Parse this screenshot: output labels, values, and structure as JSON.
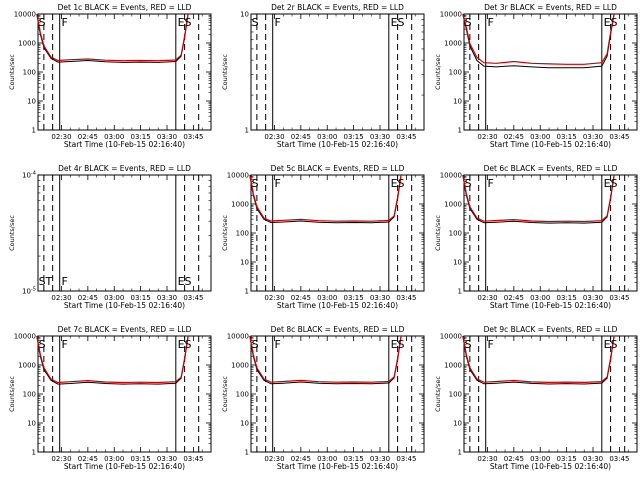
{
  "chart_data": [
    {
      "type": "line",
      "title": "Det 1c BLACK = Events, RED = LLD",
      "xlabel": "Start Time (10-Feb-15 02:16:40)",
      "ylabel": "Counts/sec",
      "yscale": "log",
      "ylim": [
        1,
        10000
      ],
      "yticks": [
        "1",
        "10",
        "100",
        "1000",
        "10000"
      ],
      "xticks": [
        "02:30",
        "02:45",
        "03:00",
        "03:15",
        "03:30",
        "03:45"
      ],
      "marker_labels": [
        {
          "text": "S"
        },
        {
          "text": "F"
        },
        {
          "text": "ES"
        }
      ],
      "series": [
        {
          "color": "#000000",
          "x": [
            "02:16",
            "02:18",
            "02:20",
            "02:24",
            "02:28",
            "02:35",
            "02:45",
            "02:55",
            "03:05",
            "03:15",
            "03:25",
            "03:35",
            "03:38",
            "03:40",
            "03:42"
          ],
          "values": [
            10000,
            2000,
            700,
            300,
            220,
            230,
            250,
            225,
            215,
            220,
            215,
            230,
            350,
            1500,
            10000
          ]
        },
        {
          "color": "#cc0000",
          "x": [
            "02:16",
            "02:18",
            "02:20",
            "02:24",
            "02:28",
            "02:35",
            "02:45",
            "02:55",
            "03:05",
            "03:15",
            "03:25",
            "03:35",
            "03:38",
            "03:40",
            "03:42"
          ],
          "values": [
            10000,
            2300,
            800,
            330,
            250,
            265,
            280,
            255,
            245,
            250,
            245,
            260,
            380,
            1700,
            10000
          ]
        }
      ]
    },
    {
      "type": "line",
      "title": "Det 2r BLACK = Events, RED = LLD",
      "xlabel": "Start Time (10-Feb-15 02:16:40)",
      "ylabel": "Counts/sec",
      "yscale": "log",
      "ylim": [
        1,
        10
      ],
      "yticks": [
        "1",
        "10"
      ],
      "xticks": [
        "02:30",
        "02:45",
        "03:00",
        "03:15",
        "03:30",
        "03:45"
      ],
      "marker_labels": [
        {
          "text": "S"
        },
        {
          "text": "F"
        },
        {
          "text": "ES"
        }
      ],
      "series": []
    },
    {
      "type": "line",
      "title": "Det 3r BLACK = Events, RED = LLD",
      "xlabel": "Start Time (10-Feb-15 02:16:40)",
      "ylabel": "Counts/sec",
      "yscale": "log",
      "ylim": [
        1,
        10000
      ],
      "yticks": [
        "1",
        "10",
        "100",
        "1000",
        "10000"
      ],
      "xticks": [
        "02:30",
        "02:45",
        "03:00",
        "03:15",
        "03:30",
        "03:45"
      ],
      "marker_labels": [
        {
          "text": "S"
        },
        {
          "text": "F"
        },
        {
          "text": "ES"
        }
      ],
      "series": [
        {
          "color": "#000000",
          "x": [
            "02:16",
            "02:18",
            "02:20",
            "02:24",
            "02:28",
            "02:35",
            "02:45",
            "02:55",
            "03:05",
            "03:15",
            "03:25",
            "03:35",
            "03:38",
            "03:40",
            "03:42"
          ],
          "values": [
            10000,
            3000,
            800,
            250,
            160,
            150,
            165,
            150,
            140,
            140,
            140,
            160,
            350,
            2000,
            10000
          ]
        },
        {
          "color": "#cc0000",
          "x": [
            "02:16",
            "02:18",
            "02:20",
            "02:24",
            "02:28",
            "02:35",
            "02:45",
            "02:55",
            "03:05",
            "03:15",
            "03:25",
            "03:35",
            "03:38",
            "03:40",
            "03:42"
          ],
          "values": [
            10000,
            3500,
            950,
            320,
            210,
            200,
            230,
            200,
            190,
            185,
            185,
            210,
            420,
            2300,
            10000
          ]
        }
      ]
    },
    {
      "type": "line",
      "title": "Det 4r BLACK = Events, RED = LLD",
      "xlabel": "Start Time (10-Feb-15 02:16:40)",
      "ylabel": "Counts/sec",
      "yscale": "log",
      "ylim": [
        1e-05,
        0.0001
      ],
      "yticks": [
        "10^-5",
        "10^-4"
      ],
      "xticks": [
        "02:30",
        "02:45",
        "03:00",
        "03:15",
        "03:30",
        "03:45"
      ],
      "marker_labels": [
        {
          "text": "ST"
        },
        {
          "text": "F"
        },
        {
          "text": "ES"
        }
      ],
      "series": []
    },
    {
      "type": "line",
      "title": "Det 5c BLACK = Events, RED = LLD",
      "xlabel": "Start Time (10-Feb-15 02:16:40)",
      "ylabel": "Counts/sec",
      "yscale": "log",
      "ylim": [
        1,
        10000
      ],
      "yticks": [
        "1",
        "10",
        "100",
        "1000",
        "10000"
      ],
      "xticks": [
        "02:30",
        "02:45",
        "03:00",
        "03:15",
        "03:30",
        "03:45"
      ],
      "marker_labels": [
        {
          "text": "S"
        },
        {
          "text": "F"
        },
        {
          "text": "ES"
        }
      ],
      "series": [
        {
          "color": "#000000",
          "x": [
            "02:16",
            "02:18",
            "02:20",
            "02:24",
            "02:28",
            "02:35",
            "02:45",
            "02:55",
            "03:05",
            "03:15",
            "03:25",
            "03:35",
            "03:38",
            "03:40",
            "03:42"
          ],
          "values": [
            10000,
            2000,
            700,
            300,
            230,
            240,
            260,
            235,
            225,
            230,
            225,
            240,
            360,
            1500,
            10000
          ]
        },
        {
          "color": "#cc0000",
          "x": [
            "02:16",
            "02:18",
            "02:20",
            "02:24",
            "02:28",
            "02:35",
            "02:45",
            "02:55",
            "03:05",
            "03:15",
            "03:25",
            "03:35",
            "03:38",
            "03:40",
            "03:42"
          ],
          "values": [
            10000,
            2300,
            800,
            330,
            260,
            275,
            295,
            265,
            255,
            260,
            255,
            270,
            390,
            1700,
            10000
          ]
        }
      ]
    },
    {
      "type": "line",
      "title": "Det 6c BLACK = Events, RED = LLD",
      "xlabel": "Start Time (10-Feb-15 02:16:40)",
      "ylabel": "Counts/sec",
      "yscale": "log",
      "ylim": [
        1,
        10000
      ],
      "yticks": [
        "1",
        "10",
        "100",
        "1000",
        "10000"
      ],
      "xticks": [
        "02:30",
        "02:45",
        "03:00",
        "03:15",
        "03:30",
        "03:45"
      ],
      "marker_labels": [
        {
          "text": "S"
        },
        {
          "text": "F"
        },
        {
          "text": "ES"
        }
      ],
      "series": [
        {
          "color": "#000000",
          "x": [
            "02:16",
            "02:18",
            "02:20",
            "02:24",
            "02:28",
            "02:35",
            "02:45",
            "02:55",
            "03:05",
            "03:15",
            "03:25",
            "03:35",
            "03:38",
            "03:40",
            "03:42"
          ],
          "values": [
            10000,
            2000,
            700,
            300,
            225,
            235,
            255,
            230,
            220,
            225,
            220,
            235,
            355,
            1500,
            10000
          ]
        },
        {
          "color": "#cc0000",
          "x": [
            "02:16",
            "02:18",
            "02:20",
            "02:24",
            "02:28",
            "02:35",
            "02:45",
            "02:55",
            "03:05",
            "03:15",
            "03:25",
            "03:35",
            "03:38",
            "03:40",
            "03:42"
          ],
          "values": [
            10000,
            2300,
            800,
            330,
            255,
            270,
            290,
            260,
            250,
            255,
            250,
            265,
            385,
            1700,
            10000
          ]
        }
      ]
    },
    {
      "type": "line",
      "title": "Det 7c BLACK = Events, RED = LLD",
      "xlabel": "Start Time (10-Feb-15 02:16:40)",
      "ylabel": "Counts/sec",
      "yscale": "log",
      "ylim": [
        1,
        10000
      ],
      "yticks": [
        "1",
        "10",
        "100",
        "1000",
        "10000"
      ],
      "xticks": [
        "02:30",
        "02:45",
        "03:00",
        "03:15",
        "03:30",
        "03:45"
      ],
      "marker_labels": [
        {
          "text": "S"
        },
        {
          "text": "F"
        },
        {
          "text": "ES"
        }
      ],
      "series": [
        {
          "color": "#000000",
          "x": [
            "02:16",
            "02:18",
            "02:20",
            "02:24",
            "02:28",
            "02:35",
            "02:45",
            "02:55",
            "03:05",
            "03:15",
            "03:25",
            "03:35",
            "03:38",
            "03:40",
            "03:42"
          ],
          "values": [
            10000,
            2000,
            700,
            300,
            220,
            230,
            255,
            230,
            220,
            225,
            220,
            235,
            350,
            1500,
            10000
          ]
        },
        {
          "color": "#cc0000",
          "x": [
            "02:16",
            "02:18",
            "02:20",
            "02:24",
            "02:28",
            "02:35",
            "02:45",
            "02:55",
            "03:05",
            "03:15",
            "03:25",
            "03:35",
            "03:38",
            "03:40",
            "03:42"
          ],
          "values": [
            10000,
            2300,
            800,
            330,
            250,
            265,
            290,
            260,
            250,
            255,
            250,
            265,
            380,
            1700,
            10000
          ]
        }
      ]
    },
    {
      "type": "line",
      "title": "Det 8c BLACK = Events, RED = LLD",
      "xlabel": "Start Time (10-Feb-15 02:16:40)",
      "ylabel": "Counts/sec",
      "yscale": "log",
      "ylim": [
        1,
        10000
      ],
      "yticks": [
        "1",
        "10",
        "100",
        "1000",
        "10000"
      ],
      "xticks": [
        "02:30",
        "02:45",
        "03:00",
        "03:15",
        "03:30",
        "03:45"
      ],
      "marker_labels": [
        {
          "text": "S"
        },
        {
          "text": "F"
        },
        {
          "text": "ES"
        }
      ],
      "series": [
        {
          "color": "#000000",
          "x": [
            "02:16",
            "02:18",
            "02:20",
            "02:24",
            "02:28",
            "02:35",
            "02:45",
            "02:55",
            "03:05",
            "03:15",
            "03:25",
            "03:35",
            "03:38",
            "03:40",
            "03:42"
          ],
          "values": [
            10000,
            2000,
            700,
            300,
            225,
            235,
            260,
            235,
            225,
            230,
            225,
            240,
            355,
            1500,
            10000
          ]
        },
        {
          "color": "#cc0000",
          "x": [
            "02:16",
            "02:18",
            "02:20",
            "02:24",
            "02:28",
            "02:35",
            "02:45",
            "02:55",
            "03:05",
            "03:15",
            "03:25",
            "03:35",
            "03:38",
            "03:40",
            "03:42"
          ],
          "values": [
            10000,
            2300,
            800,
            330,
            255,
            270,
            295,
            265,
            255,
            260,
            255,
            270,
            385,
            1700,
            10000
          ]
        }
      ]
    },
    {
      "type": "line",
      "title": "Det 9c BLACK = Events, RED = LLD",
      "xlabel": "Start Time (10-Feb-15 02:16:40)",
      "ylabel": "Counts/sec",
      "yscale": "log",
      "ylim": [
        1,
        10000
      ],
      "yticks": [
        "1",
        "10",
        "100",
        "1000",
        "10000"
      ],
      "xticks": [
        "02:30",
        "02:45",
        "03:00",
        "03:15",
        "03:30",
        "03:45"
      ],
      "marker_labels": [
        {
          "text": "S"
        },
        {
          "text": "F"
        },
        {
          "text": "ES"
        }
      ],
      "series": [
        {
          "color": "#000000",
          "x": [
            "02:16",
            "02:18",
            "02:20",
            "02:24",
            "02:28",
            "02:35",
            "02:45",
            "02:55",
            "03:05",
            "03:15",
            "03:25",
            "03:35",
            "03:38",
            "03:40",
            "03:42"
          ],
          "values": [
            10000,
            2000,
            700,
            300,
            225,
            235,
            258,
            232,
            222,
            228,
            222,
            238,
            352,
            1500,
            10000
          ]
        },
        {
          "color": "#cc0000",
          "x": [
            "02:16",
            "02:18",
            "02:20",
            "02:24",
            "02:28",
            "02:35",
            "02:45",
            "02:55",
            "03:05",
            "03:15",
            "03:25",
            "03:35",
            "03:38",
            "03:40",
            "03:42"
          ],
          "values": [
            10000,
            2300,
            800,
            330,
            255,
            270,
            292,
            262,
            252,
            258,
            252,
            268,
            382,
            1700,
            10000
          ]
        }
      ]
    }
  ]
}
